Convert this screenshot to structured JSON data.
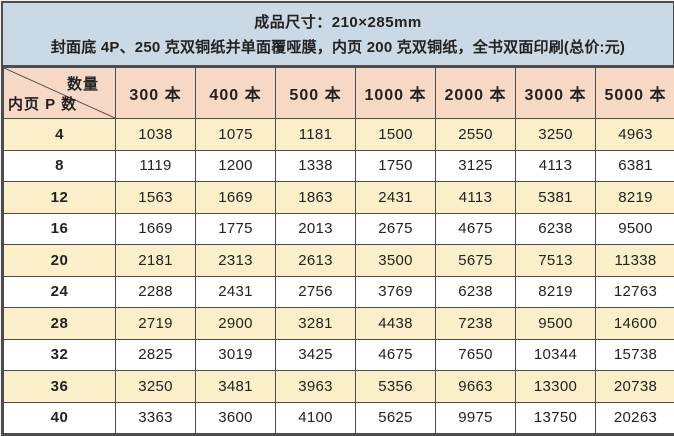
{
  "panel": {
    "line1": "成品尺寸：210×285mm",
    "line2": "封面底 4P、250 克双铜纸并单面覆哑膜，内页 200 克双铜纸，全书双面印刷(总价:元)"
  },
  "table": {
    "corner": {
      "top_right": "数量",
      "bottom_left": "内页 P 数"
    },
    "columns": [
      "300 本",
      "400 本",
      "500 本",
      "1000 本",
      "2000 本",
      "3000 本",
      "5000 本"
    ],
    "rows": [
      {
        "pages": "4",
        "values": [
          "1038",
          "1075",
          "1181",
          "1500",
          "2550",
          "3250",
          "4963"
        ]
      },
      {
        "pages": "8",
        "values": [
          "1119",
          "1200",
          "1338",
          "1750",
          "3125",
          "4113",
          "6381"
        ]
      },
      {
        "pages": "12",
        "values": [
          "1563",
          "1669",
          "1863",
          "2431",
          "4113",
          "5381",
          "8219"
        ]
      },
      {
        "pages": "16",
        "values": [
          "1669",
          "1775",
          "2013",
          "2675",
          "4675",
          "6238",
          "9500"
        ]
      },
      {
        "pages": "20",
        "values": [
          "2181",
          "2313",
          "2613",
          "3500",
          "5675",
          "7513",
          "11338"
        ]
      },
      {
        "pages": "24",
        "values": [
          "2288",
          "2431",
          "2756",
          "3769",
          "6238",
          "8219",
          "12763"
        ]
      },
      {
        "pages": "28",
        "values": [
          "2719",
          "2900",
          "3281",
          "4438",
          "7238",
          "9500",
          "14600"
        ]
      },
      {
        "pages": "32",
        "values": [
          "2825",
          "3019",
          "3425",
          "4675",
          "7650",
          "10344",
          "15738"
        ]
      },
      {
        "pages": "36",
        "values": [
          "3250",
          "3481",
          "3963",
          "5356",
          "9663",
          "13300",
          "20738"
        ]
      },
      {
        "pages": "40",
        "values": [
          "3363",
          "3600",
          "4100",
          "5625",
          "9975",
          "13750",
          "20263"
        ]
      }
    ]
  },
  "colors": {
    "panel_bg": "#c9dae6",
    "header_bg": "#f7d8c5",
    "row_alt_bg": "#faefc8",
    "row_bg": "#ffffff",
    "border": "#4c4c4c",
    "text": "#222222"
  }
}
